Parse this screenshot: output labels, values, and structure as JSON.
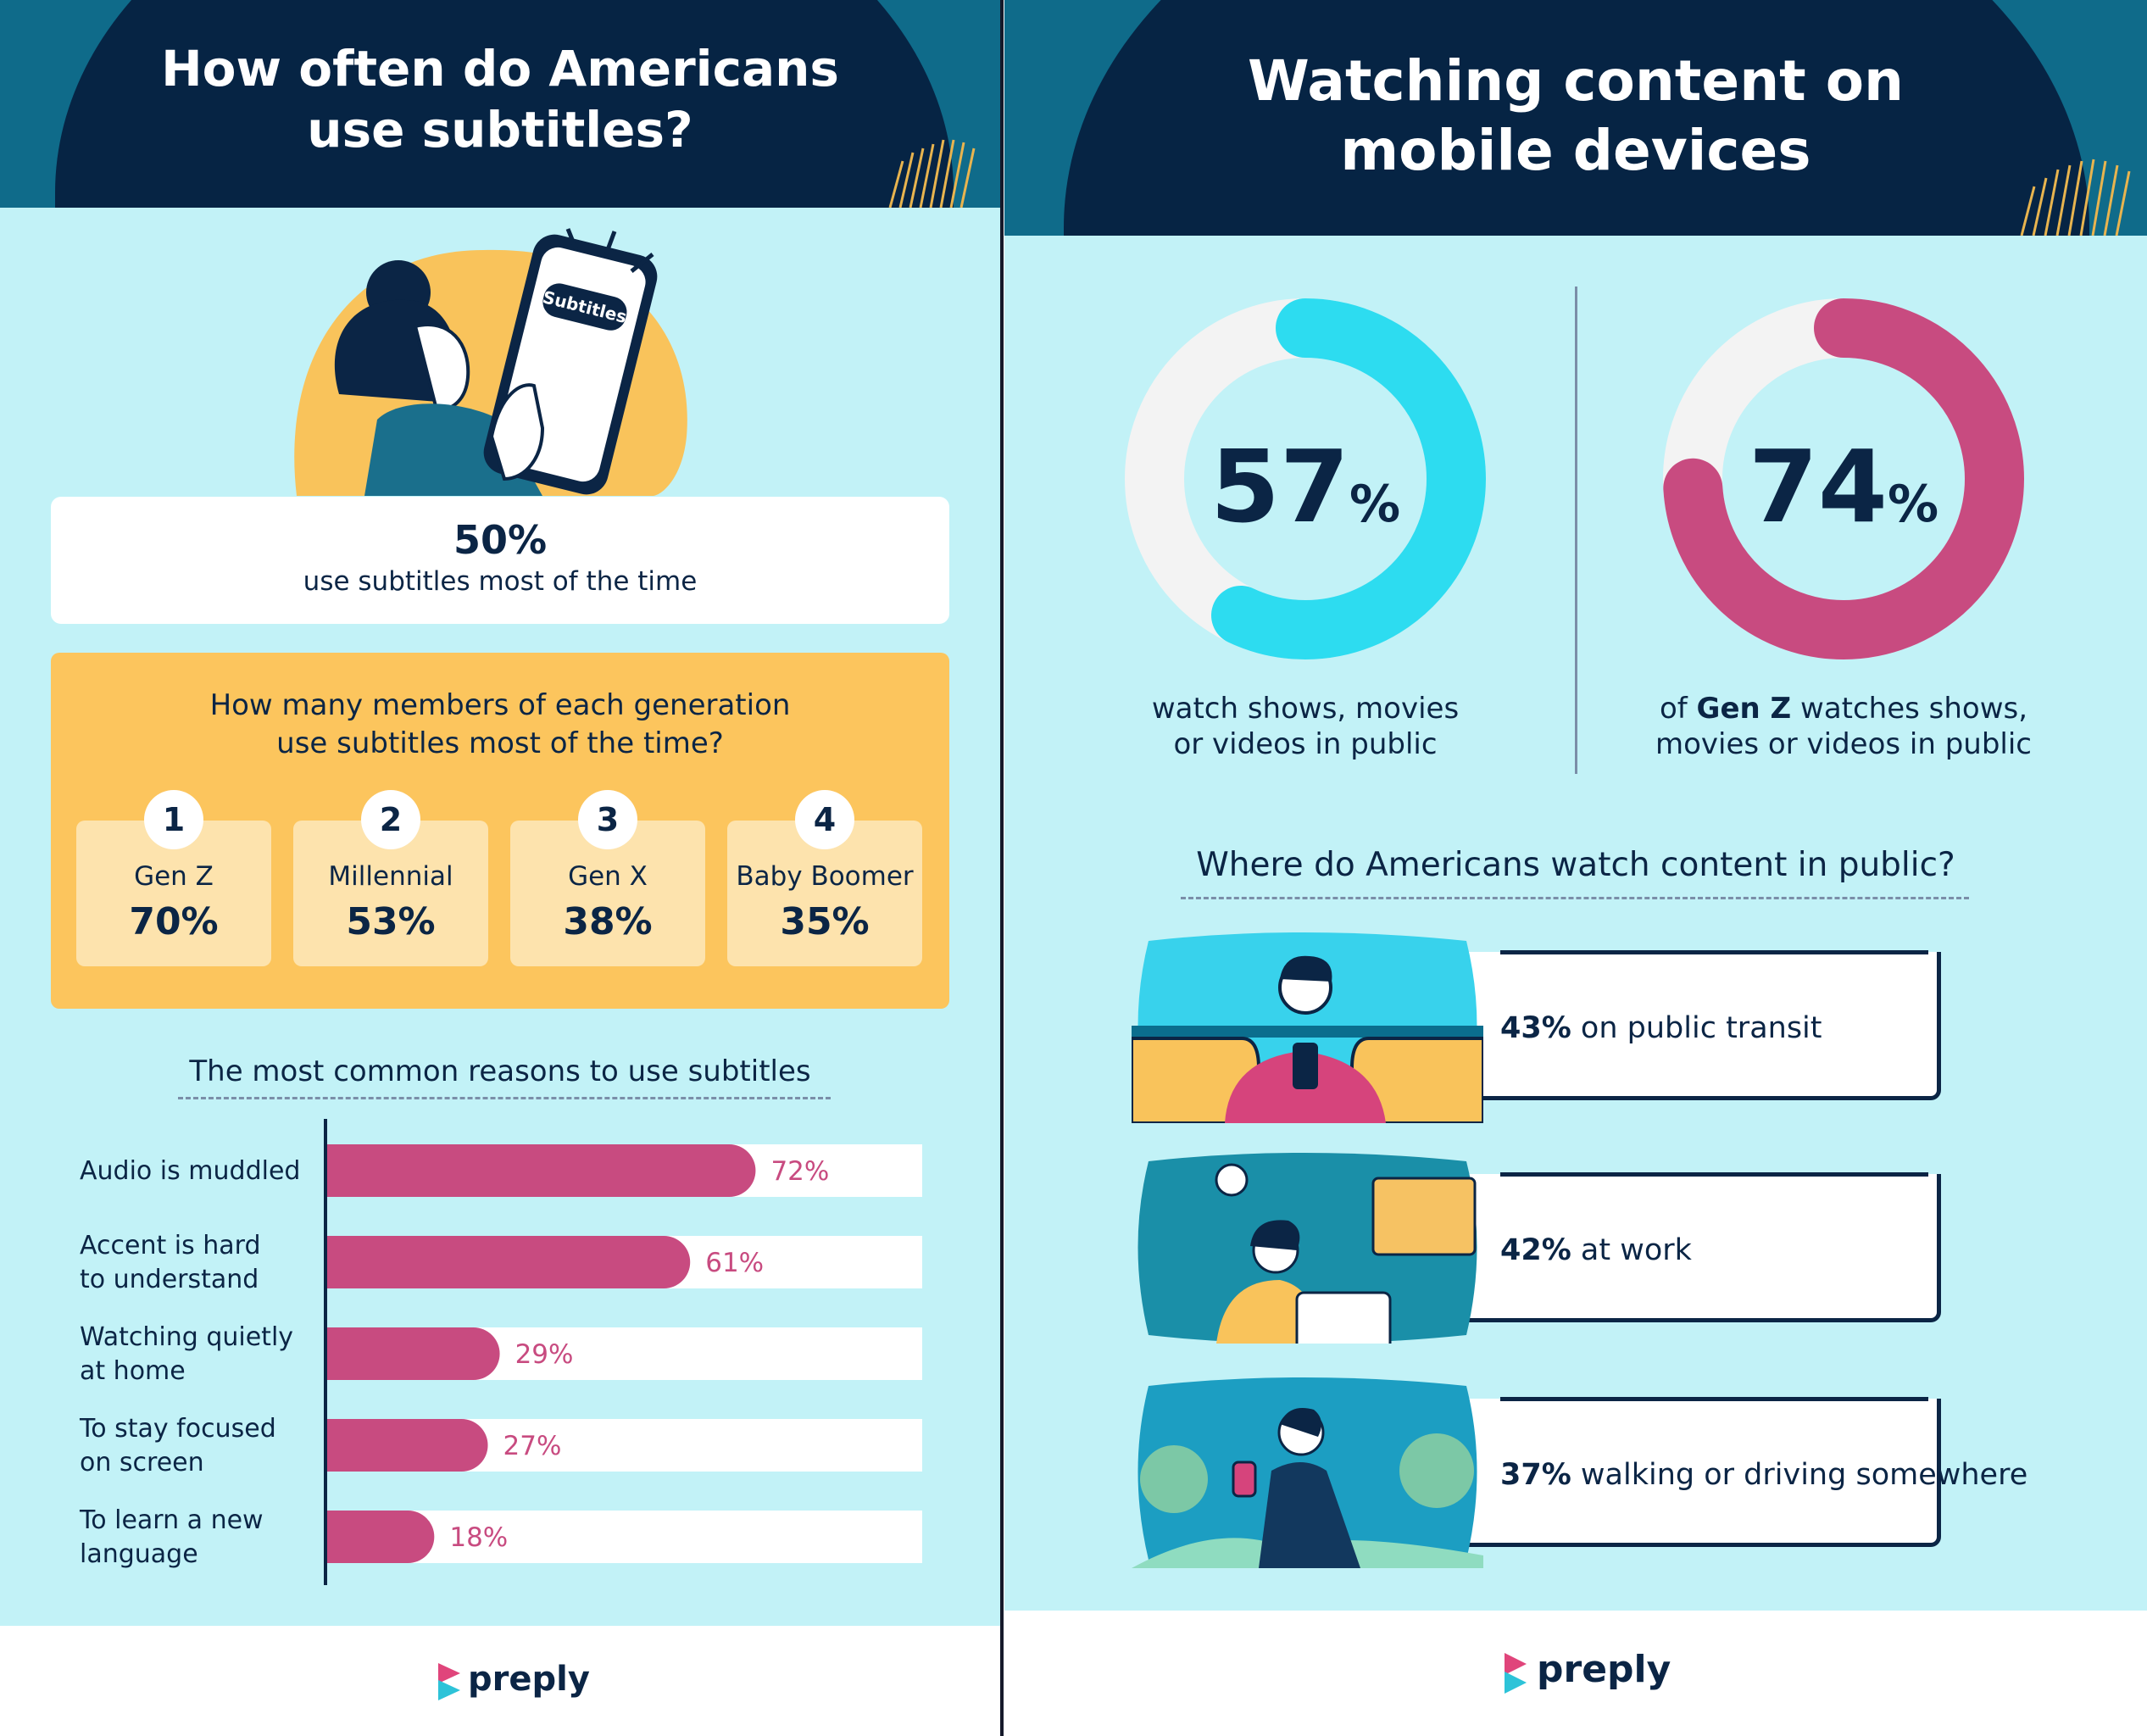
{
  "left_panel": {
    "title_line1": "How often do Americans",
    "title_line2": "use subtitles?",
    "illustration_phone_label": "Subtitles",
    "headline_stat": "50%",
    "headline_caption": "use subtitles most of the time",
    "generation_question_line1": "How many members of each generation",
    "generation_question_line2": "use subtitles most of the time?",
    "generations": [
      {
        "rank": "1",
        "label": "Gen Z",
        "value": "70%"
      },
      {
        "rank": "2",
        "label": "Millennial",
        "value": "53%"
      },
      {
        "rank": "3",
        "label": "Gen X",
        "value": "38%"
      },
      {
        "rank": "4",
        "label": "Baby Boomer",
        "value": "35%"
      }
    ],
    "reasons_title": "The most common reasons to use subtitles",
    "logo": "preply"
  },
  "right_panel": {
    "title_line1": "Watching content on",
    "title_line2": "mobile devices",
    "donut1_value": "57",
    "donut1_unit": "%",
    "donut1_caption_line1": "watch shows, movies",
    "donut1_caption_line2": "or videos in public",
    "donut2_value": "74",
    "donut2_unit": "%",
    "donut2_caption_prefix": "of ",
    "donut2_caption_bold": "Gen Z",
    "donut2_caption_rest": " watches shows,",
    "donut2_caption_line2": "movies or videos in public",
    "where_title": "Where do Americans watch content in public?",
    "locations": [
      {
        "value": "43%",
        "label": "on public transit"
      },
      {
        "value": "42%",
        "label": "at work"
      },
      {
        "value": "37%",
        "label": "walking or driving somewhere"
      }
    ],
    "logo": "preply"
  },
  "colors": {
    "navy": "#062444",
    "teal": "#0f6b8a",
    "light_cyan": "#c2f2f7",
    "orange": "#fcc55d",
    "pink": "#c84b80",
    "cyan": "#2ddcf0",
    "ring_gray": "#f3f3f3"
  },
  "chart_data": [
    {
      "type": "bar",
      "orientation": "horizontal",
      "title": "The most common reasons to use subtitles",
      "categories": [
        "Audio is muddled",
        "Accent is hard to understand",
        "Watching quietly at home",
        "To stay focused on screen",
        "To learn a new language"
      ],
      "category_lines": [
        [
          "Audio is muddled"
        ],
        [
          "Accent is hard",
          "to understand"
        ],
        [
          "Watching quietly",
          "at home"
        ],
        [
          "To stay focused",
          "on screen"
        ],
        [
          "To learn a new",
          "language"
        ]
      ],
      "values": [
        72,
        61,
        29,
        27,
        18
      ],
      "data_labels": [
        "72%",
        "61%",
        "29%",
        "27%",
        "18%"
      ],
      "xlim": [
        0,
        100
      ],
      "grid": false
    },
    {
      "type": "pie",
      "variant": "donut",
      "values": [
        57,
        43
      ],
      "color": "#2ddcf0"
    },
    {
      "type": "pie",
      "variant": "donut",
      "values": [
        74,
        26
      ],
      "color": "#c84b80"
    }
  ]
}
